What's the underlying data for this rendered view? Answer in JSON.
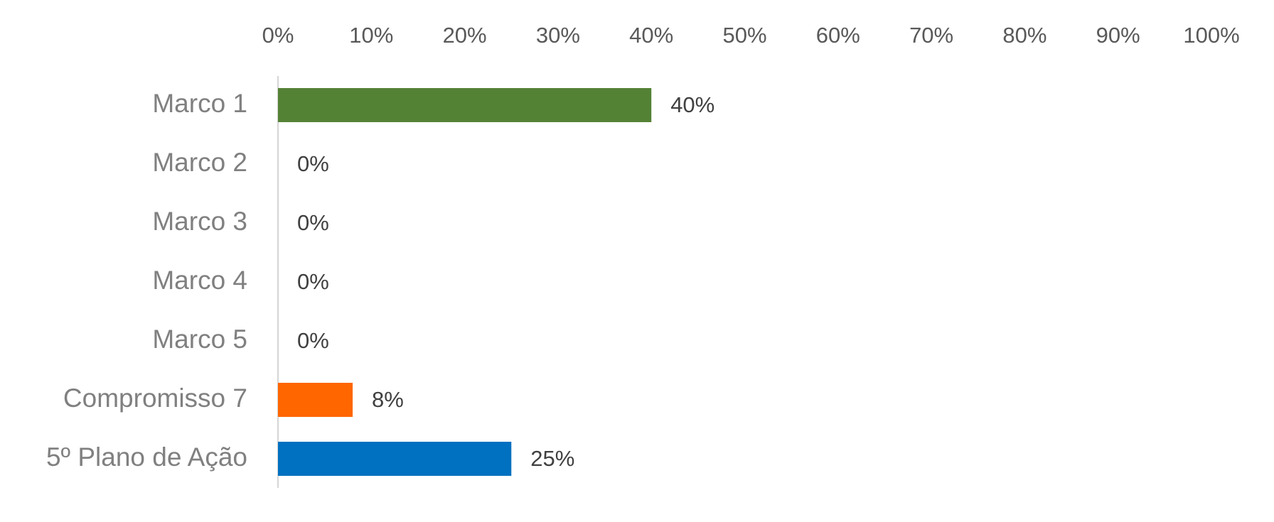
{
  "chart_data": {
    "type": "bar",
    "orientation": "horizontal",
    "categories": [
      "Marco 1",
      "Marco 2",
      "Marco 3",
      "Marco 4",
      "Marco 5",
      "Compromisso 7",
      "5º Plano de Ação"
    ],
    "values": [
      40,
      0,
      0,
      0,
      0,
      8,
      25
    ],
    "value_labels": [
      "40%",
      "0%",
      "0%",
      "0%",
      "0%",
      "8%",
      "25%"
    ],
    "colors": [
      "#548235",
      "#548235",
      "#548235",
      "#548235",
      "#548235",
      "#ff6600",
      "#0070c0"
    ],
    "xlim": [
      0,
      100
    ],
    "xticks": [
      {
        "value": 0,
        "label": "0%"
      },
      {
        "value": 10,
        "label": "10%"
      },
      {
        "value": 20,
        "label": "20%"
      },
      {
        "value": 30,
        "label": "30%"
      },
      {
        "value": 40,
        "label": "40%"
      },
      {
        "value": 50,
        "label": "50%"
      },
      {
        "value": 60,
        "label": "60%"
      },
      {
        "value": 70,
        "label": "70%"
      },
      {
        "value": 80,
        "label": "80%"
      },
      {
        "value": 90,
        "label": "90%"
      },
      {
        "value": 100,
        "label": "100%"
      }
    ],
    "grid": false
  }
}
